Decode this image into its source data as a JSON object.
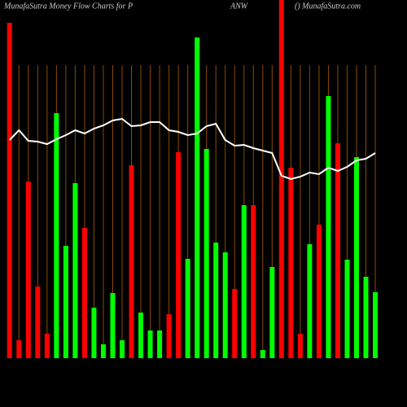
{
  "chart_data": {
    "type": "bar",
    "title": "MunafaSutra  Money Flow  Charts for P",
    "ticker": "ANW",
    "source": "() MunafaSutra.com",
    "values": [
      412,
      22,
      217,
      88,
      30,
      301,
      138,
      215,
      160,
      62,
      17,
      80,
      22,
      237,
      56,
      34,
      34,
      54,
      253,
      122,
      394,
      257,
      142,
      130,
      85,
      188,
      188,
      10,
      112,
      440,
      234,
      30,
      140,
      164,
      322,
      264,
      121,
      247,
      100,
      81
    ],
    "colors": [
      "#ff0000",
      "#ff0000",
      "#ff0000",
      "#ff0000",
      "#ff0000",
      "#00ff00",
      "#00ff00",
      "#00ff00",
      "#ff0000",
      "#00ff00",
      "#00ff00",
      "#00ff00",
      "#00ff00",
      "#ff0000",
      "#00ff00",
      "#00ff00",
      "#00ff00",
      "#ff0000",
      "#ff0000",
      "#00ff00",
      "#00ff00",
      "#00ff00",
      "#00ff00",
      "#00ff00",
      "#ff0000",
      "#00ff00",
      "#ff0000",
      "#00ff00",
      "#00ff00",
      "#ff0000",
      "#ff0000",
      "#ff0000",
      "#00ff00",
      "#ff0000",
      "#00ff00",
      "#ff0000",
      "#00ff00",
      "#00ff00",
      "#00ff00",
      "#00ff00"
    ],
    "line": {
      "color": "#ffffff",
      "values": [
        268,
        280,
        267,
        266,
        263,
        269,
        274,
        280,
        276,
        282,
        286,
        292,
        294,
        285,
        286,
        290,
        290,
        280,
        278,
        274,
        276,
        285,
        288,
        268,
        261,
        262,
        258,
        255,
        252,
        224,
        220,
        223,
        228,
        226,
        234,
        230,
        235,
        243,
        245,
        252
      ]
    },
    "ylim": [
      0,
      440
    ],
    "grid": true,
    "grid_color": "#8b4a00"
  }
}
